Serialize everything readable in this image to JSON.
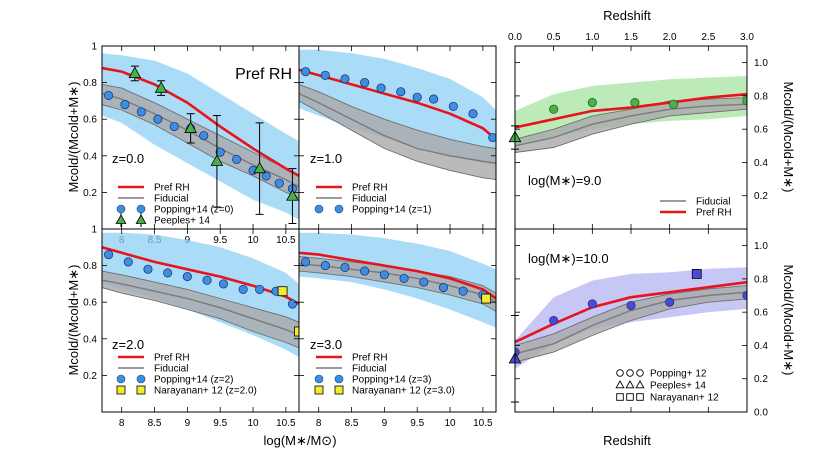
{
  "figure": {
    "left_xlabel": "log(M∗/M⊙)",
    "left_ylabel": "Mcold/(Mcold+M∗)",
    "right_xlabel": "Redshift",
    "right_top_xlabel": "Redshift",
    "right_ylabel": "Mcold/(Mcold+M∗)",
    "colors": {
      "pref": "#e8141c",
      "fid": "#7a7a7a",
      "fid_band": "#a9a9a9",
      "band_left": "#8fd0f4",
      "band_m9": "#a7e3a2",
      "band_m10": "#b4b4f2",
      "circle_left": "#3b8ee0",
      "tri": "#49b04a",
      "square": "#f1ec2c"
    },
    "legend_labels": {
      "pref": "Pref RH",
      "fid": "Fiducial",
      "pop0": "Popping+14 (z=0)",
      "peeples": "Peeples+ 14",
      "pop1": "Popping+14 (z=1)",
      "pop2": "Popping+14 (z=2)",
      "pop3": "Popping+14 (z=3)",
      "nar2": "Narayanan+ 12 (z=2.0)",
      "nar3": "Narayanan+ 12 (z=3.0)",
      "pop12": "Popping+ 12",
      "peeples14": "Peeples+ 14",
      "nar12": "Narayanan+ 12"
    }
  },
  "chart_data": [
    {
      "id": "z0",
      "type": "line",
      "xlim": [
        7.7,
        10.7
      ],
      "ylim": [
        0,
        1
      ],
      "xticks": [
        "8",
        "8.5",
        "9",
        "9.5",
        "10",
        "10.5"
      ],
      "yticks": [
        "0.2",
        "0.4",
        "0.6",
        "0.8",
        "1"
      ],
      "annotation": "z=0.0",
      "title": "Pref RH",
      "x": [
        7.7,
        8.0,
        8.5,
        9.0,
        9.5,
        10.0,
        10.5,
        10.7
      ],
      "pref": [
        0.88,
        0.86,
        0.79,
        0.69,
        0.56,
        0.44,
        0.33,
        0.29
      ],
      "fid": [
        0.74,
        0.71,
        0.63,
        0.54,
        0.44,
        0.35,
        0.27,
        0.23
      ],
      "fid_lo": [
        0.68,
        0.65,
        0.57,
        0.47,
        0.37,
        0.29,
        0.2,
        0.17
      ],
      "fid_hi": [
        0.79,
        0.77,
        0.69,
        0.6,
        0.51,
        0.42,
        0.33,
        0.29
      ],
      "band_lo": [
        0.62,
        0.58,
        0.46,
        0.36,
        0.26,
        0.16,
        0.09,
        0.05
      ],
      "band_hi": [
        0.96,
        0.95,
        0.92,
        0.85,
        0.74,
        0.63,
        0.52,
        0.48
      ],
      "circles": [
        [
          7.8,
          0.73
        ],
        [
          8.05,
          0.68
        ],
        [
          8.3,
          0.64
        ],
        [
          8.55,
          0.6
        ],
        [
          8.8,
          0.56
        ],
        [
          9.05,
          0.55
        ],
        [
          9.25,
          0.51
        ],
        [
          9.5,
          0.42
        ],
        [
          9.75,
          0.38
        ],
        [
          10.0,
          0.32
        ],
        [
          10.2,
          0.29
        ],
        [
          10.4,
          0.25
        ],
        [
          10.6,
          0.22
        ]
      ],
      "triangles": [
        [
          8.2,
          0.85,
          0.04
        ],
        [
          8.6,
          0.77,
          0.04
        ],
        [
          9.05,
          0.55,
          0.08
        ],
        [
          9.45,
          0.37,
          0.25
        ],
        [
          10.1,
          0.33,
          0.25
        ],
        [
          10.6,
          0.18,
          0.15
        ]
      ],
      "legend": [
        "pref",
        "fid",
        "pop0",
        "peeples"
      ]
    },
    {
      "id": "z1",
      "type": "line",
      "xlim": [
        7.7,
        10.7
      ],
      "ylim": [
        0,
        1
      ],
      "xticks": [],
      "yticks": [],
      "annotation": "z=1.0",
      "x": [
        7.7,
        8.0,
        8.5,
        9.0,
        9.5,
        10.0,
        10.5,
        10.7
      ],
      "pref": [
        0.87,
        0.84,
        0.79,
        0.74,
        0.69,
        0.63,
        0.55,
        0.49
      ],
      "fid": [
        0.74,
        0.69,
        0.6,
        0.51,
        0.44,
        0.4,
        0.37,
        0.36
      ],
      "fid_lo": [
        0.7,
        0.64,
        0.54,
        0.44,
        0.37,
        0.32,
        0.28,
        0.27
      ],
      "fid_hi": [
        0.79,
        0.75,
        0.67,
        0.6,
        0.54,
        0.49,
        0.45,
        0.44
      ],
      "band_lo": [
        0.66,
        0.62,
        0.55,
        0.5,
        0.45,
        0.4,
        0.36,
        0.35
      ],
      "band_hi": [
        0.98,
        0.98,
        0.96,
        0.93,
        0.88,
        0.82,
        0.72,
        0.65
      ],
      "circles": [
        [
          7.8,
          0.86
        ],
        [
          8.1,
          0.84
        ],
        [
          8.4,
          0.82
        ],
        [
          8.7,
          0.8
        ],
        [
          8.95,
          0.77
        ],
        [
          9.25,
          0.75
        ],
        [
          9.5,
          0.72
        ],
        [
          9.75,
          0.71
        ],
        [
          10.05,
          0.67
        ],
        [
          10.35,
          0.63
        ],
        [
          10.65,
          0.5
        ]
      ],
      "legend": [
        "pref",
        "fid",
        "pop1"
      ]
    },
    {
      "id": "z2",
      "type": "line",
      "xlim": [
        7.7,
        10.7
      ],
      "ylim": [
        0,
        1
      ],
      "xticks": [
        "8",
        "8.5",
        "9",
        "9.5",
        "10",
        "10.5"
      ],
      "yticks": [
        "0.2",
        "0.4",
        "0.6",
        "0.8",
        "1"
      ],
      "annotation": "z=2.0",
      "x": [
        7.7,
        8.0,
        8.5,
        9.0,
        9.5,
        10.0,
        10.5,
        10.7
      ],
      "pref": [
        0.9,
        0.87,
        0.82,
        0.78,
        0.74,
        0.69,
        0.63,
        0.59
      ],
      "fid": [
        0.72,
        0.7,
        0.66,
        0.62,
        0.57,
        0.51,
        0.45,
        0.42
      ],
      "fid_lo": [
        0.68,
        0.65,
        0.61,
        0.56,
        0.51,
        0.44,
        0.38,
        0.35
      ],
      "fid_hi": [
        0.77,
        0.75,
        0.71,
        0.67,
        0.62,
        0.57,
        0.52,
        0.49
      ],
      "band_lo": [
        0.7,
        0.67,
        0.62,
        0.56,
        0.49,
        0.42,
        0.34,
        0.3
      ],
      "band_hi": [
        0.98,
        0.98,
        0.97,
        0.94,
        0.9,
        0.84,
        0.76,
        0.7
      ],
      "circles": [
        [
          7.8,
          0.86
        ],
        [
          8.1,
          0.82
        ],
        [
          8.4,
          0.78
        ],
        [
          8.7,
          0.76
        ],
        [
          9.0,
          0.74
        ],
        [
          9.3,
          0.72
        ],
        [
          9.55,
          0.7
        ],
        [
          9.85,
          0.67
        ],
        [
          10.1,
          0.67
        ],
        [
          10.35,
          0.66
        ],
        [
          10.6,
          0.59
        ]
      ],
      "squares": [
        [
          10.45,
          0.66
        ],
        [
          10.7,
          0.44
        ]
      ],
      "legend": [
        "pref",
        "fid",
        "pop2",
        "nar2"
      ]
    },
    {
      "id": "z3",
      "type": "line",
      "xlim": [
        7.7,
        10.7
      ],
      "ylim": [
        0,
        1
      ],
      "xticks": [
        "8",
        "8.5",
        "9",
        "9.5",
        "10",
        "10.5"
      ],
      "yticks": [],
      "annotation": "z=3.0",
      "x": [
        7.7,
        8.0,
        8.5,
        9.0,
        9.5,
        10.0,
        10.5,
        10.7
      ],
      "pref": [
        0.87,
        0.86,
        0.83,
        0.8,
        0.77,
        0.73,
        0.67,
        0.62
      ],
      "fid": [
        0.81,
        0.8,
        0.78,
        0.76,
        0.73,
        0.69,
        0.64,
        0.6
      ],
      "fid_lo": [
        0.77,
        0.76,
        0.74,
        0.71,
        0.68,
        0.64,
        0.59,
        0.55
      ],
      "fid_hi": [
        0.85,
        0.84,
        0.82,
        0.8,
        0.77,
        0.74,
        0.69,
        0.65
      ],
      "band_lo": [
        0.74,
        0.73,
        0.71,
        0.67,
        0.62,
        0.56,
        0.49,
        0.46
      ],
      "band_hi": [
        0.98,
        0.98,
        0.97,
        0.95,
        0.92,
        0.88,
        0.81,
        0.78
      ],
      "circles": [
        [
          7.8,
          0.82
        ],
        [
          8.1,
          0.8
        ],
        [
          8.4,
          0.79
        ],
        [
          8.7,
          0.77
        ],
        [
          9.0,
          0.75
        ],
        [
          9.3,
          0.73
        ],
        [
          9.6,
          0.71
        ],
        [
          9.9,
          0.68
        ],
        [
          10.2,
          0.66
        ],
        [
          10.5,
          0.64
        ]
      ],
      "squares": [
        [
          10.55,
          0.62
        ]
      ],
      "legend": [
        "pref",
        "fid",
        "pop3",
        "nar3"
      ]
    },
    {
      "id": "m9",
      "type": "line",
      "xlim": [
        0,
        3
      ],
      "ylim": [
        0,
        1.1
      ],
      "xticks": [
        "0.0",
        "0.5",
        "1.0",
        "1.5",
        "2.0",
        "2.5",
        "3.0"
      ],
      "yticks": [
        "0.2",
        "0.4",
        "0.6",
        "0.8",
        "1.0"
      ],
      "annotation": "log(M∗)=9.0",
      "x": [
        0,
        0.5,
        1.0,
        1.5,
        2.0,
        2.5,
        3.0
      ],
      "pref": [
        0.61,
        0.66,
        0.71,
        0.73,
        0.76,
        0.79,
        0.81
      ],
      "fid": [
        0.5,
        0.55,
        0.63,
        0.68,
        0.72,
        0.74,
        0.75
      ],
      "fid_lo": [
        0.46,
        0.49,
        0.57,
        0.63,
        0.68,
        0.7,
        0.72
      ],
      "fid_hi": [
        0.54,
        0.6,
        0.68,
        0.72,
        0.77,
        0.78,
        0.79
      ],
      "band_lo": [
        0.5,
        0.55,
        0.6,
        0.63,
        0.65,
        0.66,
        0.68
      ],
      "band_hi": [
        0.71,
        0.81,
        0.86,
        0.88,
        0.9,
        0.91,
        0.92
      ],
      "circles": [
        [
          0.5,
          0.72
        ],
        [
          1.0,
          0.76
        ],
        [
          1.55,
          0.76
        ],
        [
          2.05,
          0.75
        ],
        [
          3.0,
          0.77
        ]
      ],
      "triangles": [
        [
          0.0,
          0.55,
          0.07
        ]
      ],
      "legend": [
        "fid",
        "pref"
      ]
    },
    {
      "id": "m10",
      "type": "line",
      "xlim": [
        0,
        3
      ],
      "ylim": [
        0,
        1.1
      ],
      "xticks": [
        "0.0",
        "0.5",
        "1.0",
        "1.5",
        "2.0",
        "2.5",
        "3.0"
      ],
      "yticks": [
        "0.0",
        "0.2",
        "0.4",
        "0.6",
        "0.8",
        "1.0"
      ],
      "annotation": "log(M∗)=10.0",
      "x": [
        0,
        0.5,
        1.0,
        1.5,
        2.0,
        2.5,
        3.0
      ],
      "pref": [
        0.42,
        0.53,
        0.63,
        0.69,
        0.72,
        0.75,
        0.78
      ],
      "fid": [
        0.35,
        0.41,
        0.52,
        0.61,
        0.67,
        0.7,
        0.72
      ],
      "fid_lo": [
        0.3,
        0.36,
        0.46,
        0.55,
        0.62,
        0.66,
        0.68
      ],
      "fid_hi": [
        0.4,
        0.47,
        0.57,
        0.66,
        0.71,
        0.74,
        0.76
      ],
      "band_lo": [
        0.26,
        0.41,
        0.5,
        0.54,
        0.57,
        0.6,
        0.62
      ],
      "band_hi": [
        0.43,
        0.69,
        0.79,
        0.83,
        0.84,
        0.86,
        0.87
      ],
      "circles": [
        [
          0.0,
          0.36
        ],
        [
          0.5,
          0.55
        ],
        [
          1.0,
          0.65
        ],
        [
          1.5,
          0.64
        ],
        [
          2.0,
          0.66
        ],
        [
          3.0,
          0.7
        ]
      ],
      "triangles": [
        [
          0.0,
          0.32,
          0.26
        ]
      ],
      "squares": [
        [
          2.35,
          0.83
        ]
      ],
      "legend": []
    }
  ]
}
